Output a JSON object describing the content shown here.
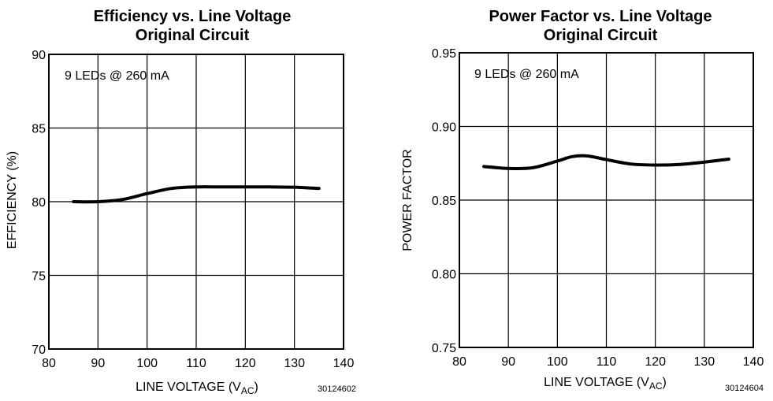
{
  "chart_data": [
    {
      "type": "line",
      "title": "Efficiency vs. Line Voltage",
      "subtitle": "Original Circuit",
      "xlabel": "LINE VOLTAGE (V",
      "xlabel_sub": "AC",
      "xlabel_tail": ")",
      "ylabel": "EFFICIENCY (%)",
      "xlim": [
        80,
        140
      ],
      "ylim": [
        70,
        90
      ],
      "xticks": [
        80,
        90,
        100,
        110,
        120,
        130,
        140
      ],
      "yticks": [
        70,
        75,
        80,
        85,
        90
      ],
      "grid": true,
      "annotation": "9 LEDs @ 260 mA",
      "figure_code": "30124602",
      "series": [
        {
          "name": "9 LEDs @ 260 mA",
          "x": [
            85,
            90,
            95,
            100,
            105,
            110,
            115,
            120,
            125,
            130,
            135
          ],
          "y": [
            80.0,
            80.0,
            80.15,
            80.55,
            80.9,
            81.0,
            81.0,
            81.0,
            81.0,
            80.98,
            80.9
          ]
        }
      ]
    },
    {
      "type": "line",
      "title": "Power Factor vs. Line Voltage",
      "subtitle": "Original Circuit",
      "xlabel": "LINE VOLTAGE (V",
      "xlabel_sub": "AC",
      "xlabel_tail": ")",
      "ylabel": "POWER FACTOR",
      "xlim": [
        80,
        140
      ],
      "ylim": [
        0.75,
        0.95
      ],
      "xticks": [
        80,
        90,
        100,
        110,
        120,
        130,
        140
      ],
      "yticks": [
        0.75,
        0.8,
        0.85,
        0.9,
        0.95
      ],
      "ytick_labels": [
        "0.75",
        "0.80",
        "0.85",
        "0.90",
        "0.95"
      ],
      "grid": true,
      "annotation": "9 LEDs @ 260 mA",
      "figure_code": "30124604",
      "series": [
        {
          "name": "9 LEDs @ 260 mA",
          "x": [
            85,
            90,
            95,
            100,
            103,
            106,
            110,
            115,
            120,
            125,
            130,
            135
          ],
          "y": [
            0.8728,
            0.8715,
            0.872,
            0.8765,
            0.8795,
            0.88,
            0.8775,
            0.8745,
            0.8738,
            0.8742,
            0.8758,
            0.8778
          ]
        }
      ]
    }
  ]
}
